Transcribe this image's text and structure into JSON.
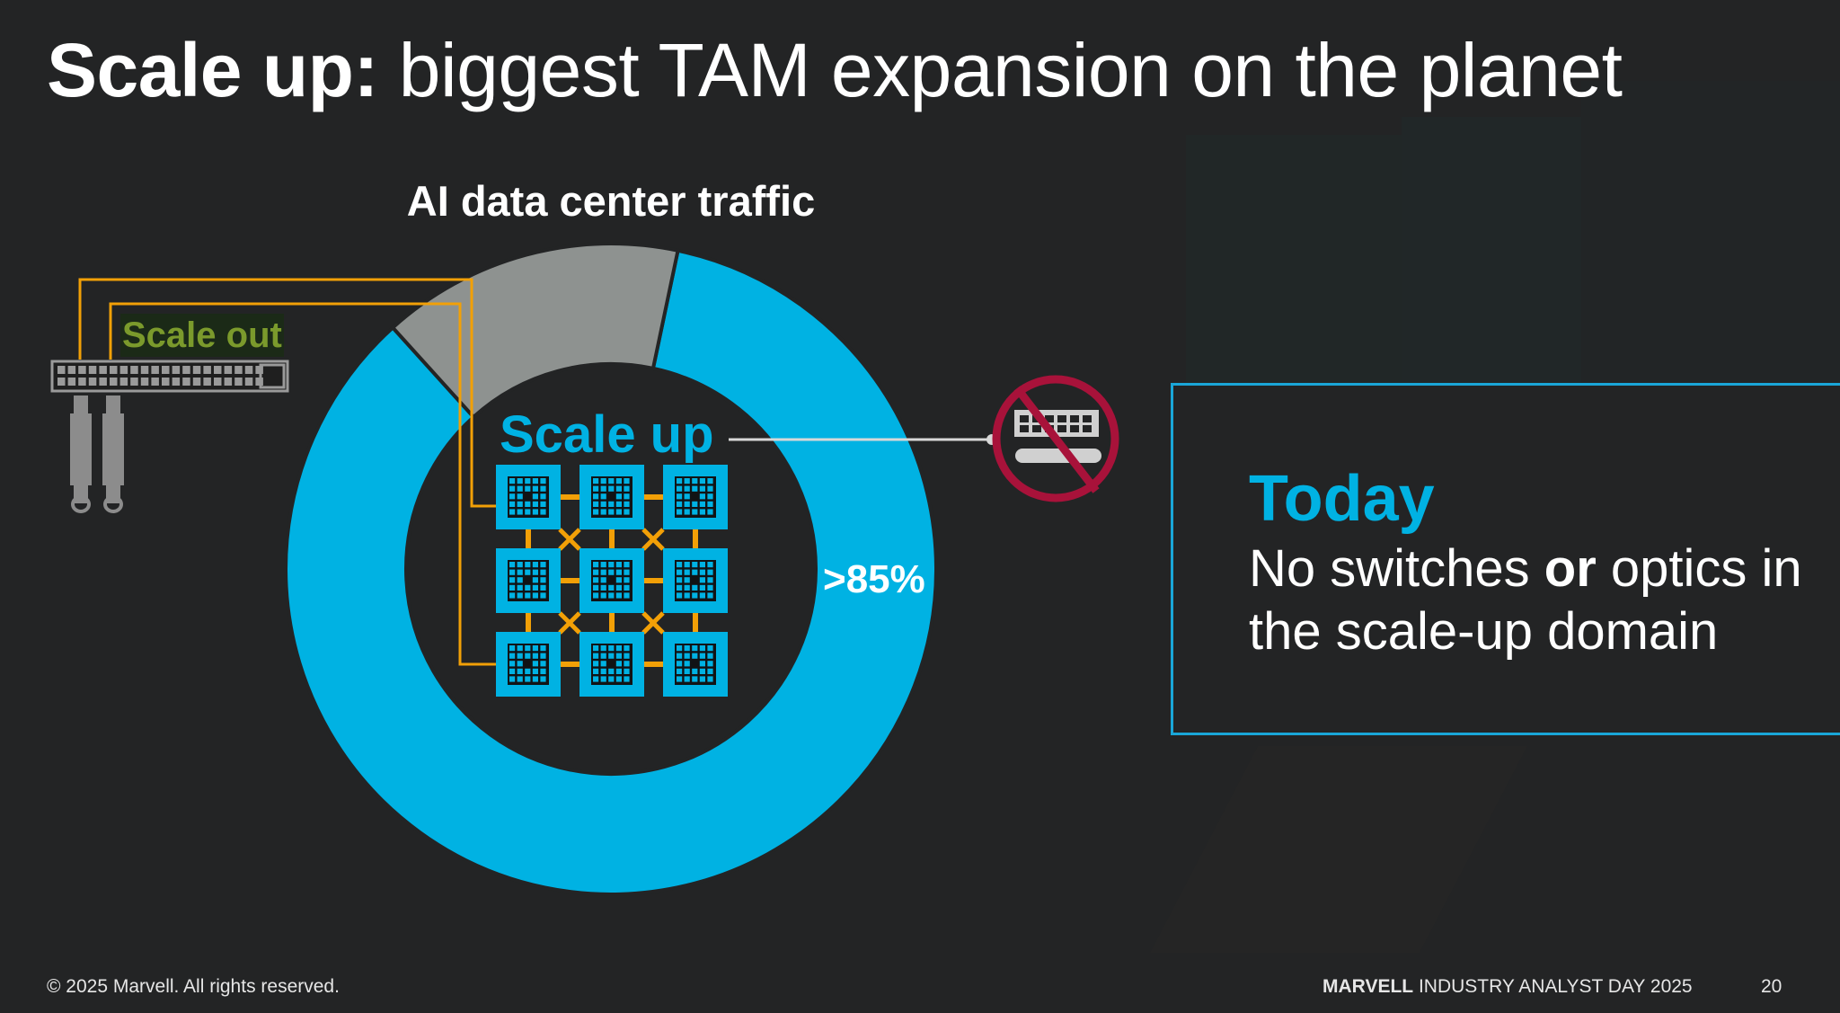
{
  "slide": {
    "title_bold": "Scale up:",
    "title_rest": " biggest TAM expansion on the planet",
    "page_number": "20"
  },
  "chart": {
    "title": "AI data center traffic",
    "scale_up_label": "Scale up",
    "scale_out_label": "Scale out",
    "share_label": ">85%"
  },
  "chart_data": {
    "type": "pie",
    "title": "AI data center traffic",
    "categories": [
      "Scale up",
      "Scale out"
    ],
    "values": [
      85,
      15
    ],
    "colors": [
      "#00b2e3",
      "#8e9290"
    ],
    "annotations": [
      ">85%"
    ]
  },
  "today": {
    "heading": "Today",
    "body_1": "No switches ",
    "body_bold": "or",
    "body_2": " optics in the scale-up domain"
  },
  "footer": {
    "copyright": "© 2025 Marvell. All rights reserved.",
    "brand": "MARVELL",
    "event": " INDUSTRY ANALYST DAY 2025"
  },
  "colors": {
    "background": "#232425",
    "accent": "#00b2e3",
    "scale_out_gray": "#8e9290",
    "link_orange": "#f2a007",
    "prohibit_red": "#a8123a",
    "scale_out_green": "#7b9a2c"
  },
  "icons": {
    "switch": "switch-icon",
    "optics": "optical-transceiver-icon",
    "prohibited": "no-switch-no-optics-icon",
    "xpu": "xpu-chip-icon"
  }
}
